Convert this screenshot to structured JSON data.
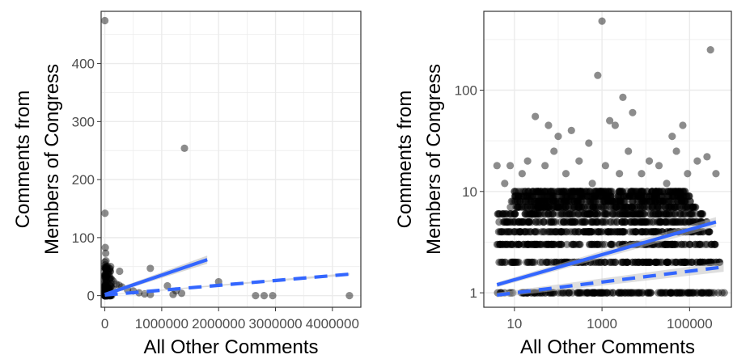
{
  "colors": {
    "point": "#000000",
    "smooth_line": "#3366ff",
    "ci_band": "#bdbdbd",
    "panel_bg": "#ffffff",
    "grid": "#ebebeb",
    "border": "#333333"
  },
  "chart_data": [
    {
      "type": "scatter",
      "xlabel": "All Other Comments",
      "ylabel": [
        "Comments from",
        "Members of Congress"
      ],
      "xlim": [
        -65000,
        4500000
      ],
      "ylim": [
        -20,
        490
      ],
      "x_ticks": [
        0,
        1000000,
        2000000,
        3000000,
        4000000
      ],
      "x_tick_labels": [
        "0",
        "1000000",
        "2000000",
        "3000000",
        "4000000"
      ],
      "y_ticks": [
        0,
        100,
        200,
        300,
        400
      ],
      "y_tick_labels": [
        "0",
        "100",
        "200",
        "300",
        "400"
      ],
      "grid": true,
      "points": {
        "x": [
          500,
          3000,
          8000,
          15000,
          20000,
          30000,
          40000,
          60000,
          80000,
          100000,
          120000,
          150000,
          200000,
          250000,
          300000,
          400000,
          500000,
          600000,
          700000,
          800000,
          1000,
          5000,
          12000,
          25000,
          50000,
          2000,
          7000,
          18000,
          35000,
          70000,
          200,
          600,
          1500,
          4000,
          9000,
          22000,
          45000,
          90000,
          140000,
          260000,
          4000,
          6000,
          10000,
          80000,
          1400000,
          1200000,
          2000000,
          800000,
          1100000,
          1250000,
          1350000,
          2650000,
          2800000,
          2950000,
          4300000
        ],
        "y": [
          474,
          142,
          83,
          73,
          60,
          50,
          45,
          40,
          35,
          30,
          28,
          25,
          20,
          18,
          15,
          10,
          8,
          5,
          3,
          2,
          2,
          4,
          6,
          8,
          12,
          1,
          3,
          5,
          7,
          10,
          0,
          1,
          2,
          3,
          4,
          5,
          6,
          9,
          12,
          42,
          53,
          35,
          47,
          30,
          254,
          2,
          24,
          47,
          17,
          8,
          4,
          0,
          0,
          0,
          0
        ]
      },
      "fits": [
        {
          "line": "solid",
          "x": [
            0,
            1800000
          ],
          "y": [
            2,
            62
          ],
          "ci_width": [
            5,
            14
          ]
        },
        {
          "line": "dashed",
          "x": [
            0,
            4300000
          ],
          "y": [
            1,
            37
          ],
          "ci_width": [
            1,
            4
          ]
        }
      ]
    },
    {
      "type": "scatter",
      "xlabel": "All Other Comments",
      "ylabel": [
        "Comments from",
        "Members of Congress"
      ],
      "x_scale": "log10",
      "y_scale": "log10",
      "xlim": [
        2,
        900000
      ],
      "ylim": [
        0.72,
        600
      ],
      "x_ticks": [
        10,
        1000,
        100000
      ],
      "x_tick_labels": [
        "10",
        "1000",
        "100000"
      ],
      "y_ticks": [
        1,
        10,
        100
      ],
      "y_tick_labels": [
        "1",
        "10",
        "100"
      ],
      "grid": true,
      "points": {
        "x": [
          1000,
          300000,
          800,
          30,
          60,
          1500,
          2000,
          5000,
          3000,
          100,
          200,
          500,
          40000,
          70000,
          4,
          6,
          8,
          15,
          20,
          50,
          80,
          150,
          300,
          600,
          1200,
          2500,
          4000,
          8000,
          12000,
          20000,
          30000,
          50000,
          90000,
          150000,
          250000,
          400000
        ],
        "y": [
          480,
          250,
          140,
          55,
          45,
          50,
          45,
          60,
          85,
          35,
          40,
          30,
          35,
          45,
          18,
          12,
          18,
          15,
          20,
          18,
          25,
          15,
          20,
          12,
          18,
          15,
          25,
          15,
          20,
          18,
          12,
          25,
          15,
          20,
          22,
          15
        ]
      },
      "stripes": [
        {
          "y": 1,
          "x_from": 4,
          "x_to": 700000
        },
        {
          "y": 2,
          "x_from": 4,
          "x_to": 500000
        },
        {
          "y": 3,
          "x_from": 4,
          "x_to": 400000
        },
        {
          "y": 4,
          "x_from": 4,
          "x_to": 300000
        },
        {
          "y": 5,
          "x_from": 4,
          "x_to": 250000
        },
        {
          "y": 6,
          "x_from": 4,
          "x_to": 200000
        },
        {
          "y": 7,
          "x_from": 8,
          "x_to": 150000
        },
        {
          "y": 8,
          "x_from": 8,
          "x_to": 120000
        },
        {
          "y": 9,
          "x_from": 10,
          "x_to": 100000
        },
        {
          "y": 10,
          "x_from": 10,
          "x_to": 80000
        }
      ],
      "fits": [
        {
          "line": "solid",
          "x": [
            4,
            400000
          ],
          "y": [
            1.2,
            5
          ]
        },
        {
          "line": "dashed",
          "x": [
            4,
            600000
          ],
          "y": [
            0.95,
            1.8
          ]
        }
      ]
    }
  ]
}
